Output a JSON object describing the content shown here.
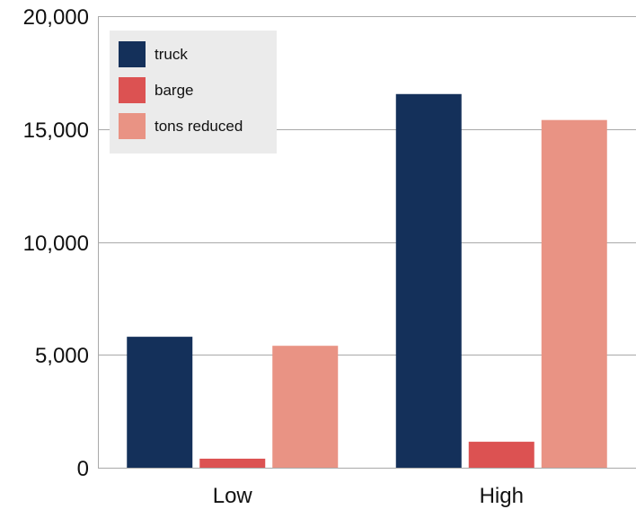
{
  "chart_data": {
    "type": "bar",
    "title": "",
    "xlabel": "",
    "ylabel": "",
    "categories": [
      "Low",
      "High"
    ],
    "series": [
      {
        "name": "truck",
        "values": [
          5800,
          16550
        ],
        "color": "#14305a"
      },
      {
        "name": "barge",
        "values": [
          400,
          1150
        ],
        "color": "#dc5252"
      },
      {
        "name": "tons reduced",
        "values": [
          5400,
          15400
        ],
        "color": "#e99384"
      }
    ],
    "ylim": [
      0,
      20000
    ],
    "yticks": [
      0,
      5000,
      10000,
      15000,
      20000
    ],
    "ytick_labels": [
      "0",
      "5,000",
      "10,000",
      "15,000",
      "20,000"
    ],
    "grid": true,
    "legend_position": "top-left",
    "legend_background": "#ebebeb"
  }
}
